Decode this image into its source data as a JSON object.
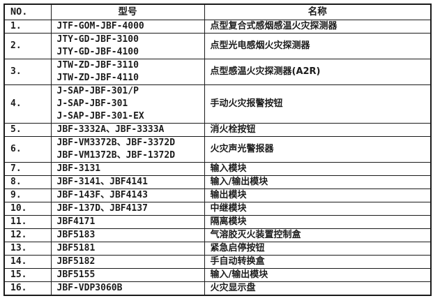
{
  "table": {
    "columns": [
      {
        "key": "no",
        "label": "NO."
      },
      {
        "key": "model",
        "label": "型号"
      },
      {
        "key": "name",
        "label": "名称"
      }
    ],
    "rows": [
      {
        "no": "1.",
        "models": [
          "JTF-GOM-JBF-4000"
        ],
        "name": "点型复合式感烟感温火灾探测器"
      },
      {
        "no": "2.",
        "models": [
          "JTY-GD-JBF-3100",
          "JTY-GD-JBF-4100"
        ],
        "name": "点型光电感烟火灾探测器"
      },
      {
        "no": "3.",
        "models": [
          "JTW-ZD-JBF-3110",
          "JTW-ZD-JBF-4110"
        ],
        "name": "点型感温火灾探测器(A2R)"
      },
      {
        "no": "4.",
        "models": [
          "J-SAP-JBF-301/P",
          "J-SAP-JBF-301",
          "J-SAP-JBF-301-EX"
        ],
        "name": "手动火灾报警按钮"
      },
      {
        "no": "5.",
        "models": [
          "JBF-3332A、JBF-3333A"
        ],
        "name": "消火栓按钮"
      },
      {
        "no": "6.",
        "models": [
          "JBF-VM3372B、JBF-3372D",
          "JBF-VM1372B、JBF-1372D"
        ],
        "name": "火灾声光警报器"
      },
      {
        "no": "7.",
        "models": [
          "JBF-3131"
        ],
        "name": "输入模块"
      },
      {
        "no": "8.",
        "models": [
          "JBF-3141、JBF4141"
        ],
        "name": "输入/输出模块"
      },
      {
        "no": "9.",
        "models": [
          "JBF-143F、JBF4143"
        ],
        "name": "输出模块"
      },
      {
        "no": "10.",
        "models": [
          "JBF-137D、JBF4137"
        ],
        "name": "中继模块"
      },
      {
        "no": "11.",
        "models": [
          "JBF4171"
        ],
        "name": "隔离模块"
      },
      {
        "no": "12.",
        "models": [
          "JBF5183"
        ],
        "name": "气溶胶灭火装置控制盒"
      },
      {
        "no": "13.",
        "models": [
          "JBF5181"
        ],
        "name": "紧急启停按钮"
      },
      {
        "no": "14.",
        "models": [
          "JBF5182"
        ],
        "name": "手自动转换盒"
      },
      {
        "no": "15.",
        "models": [
          "JBF5155"
        ],
        "name": "输入/输出模块"
      },
      {
        "no": "16.",
        "models": [
          "JBF-VDP3060B"
        ],
        "name": "火灾显示盘"
      }
    ],
    "colors": {
      "border": "#1a1a1a",
      "text": "#1c1c1c",
      "background": "#ffffff"
    }
  }
}
